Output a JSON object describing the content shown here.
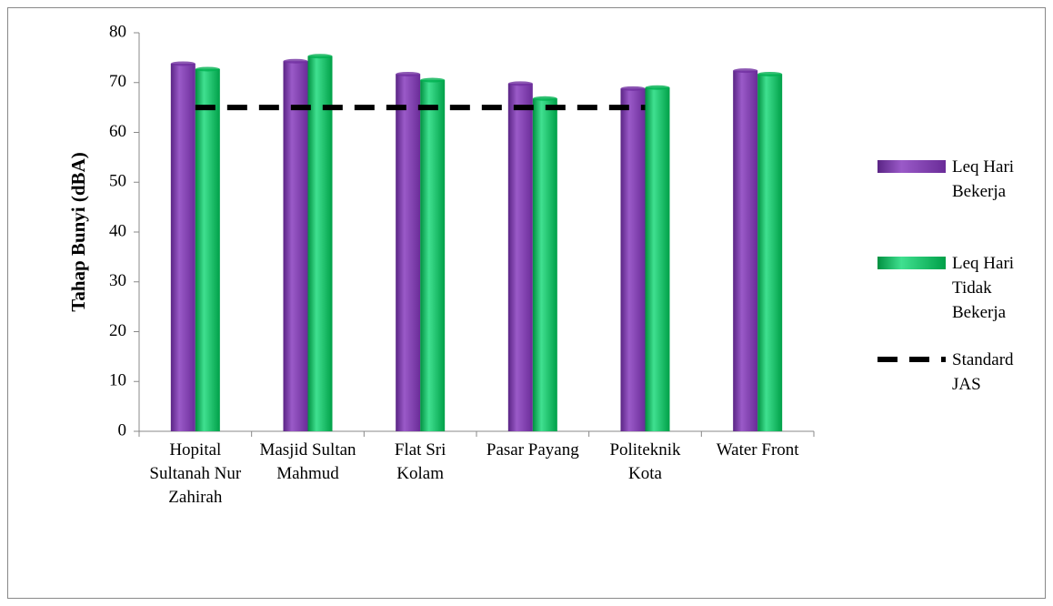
{
  "chart_data": {
    "type": "bar",
    "y_label": "Tahap Bunyi (dBA)",
    "categories": [
      "Hopital Sultanah Nur Zahirah",
      "Masjid Sultan Mahmud",
      "Flat Sri Kolam",
      "Pasar Payang",
      "Politeknik Kota",
      "Water Front"
    ],
    "series": [
      {
        "name": "Leq Hari Bekerja",
        "type": "bar",
        "color": "#7030a0",
        "values": [
          73.8,
          74.3,
          71.7,
          69.8,
          68.8,
          72.4
        ]
      },
      {
        "name": "Leq Hari Tidak Bekerja",
        "type": "bar",
        "color": "#00b050",
        "values": [
          72.7,
          75.3,
          70.5,
          66.8,
          69.0,
          71.7
        ]
      },
      {
        "name": "Standard JAS",
        "type": "line",
        "color": "#000000",
        "values": [
          65,
          65,
          65,
          65,
          65,
          null
        ]
      }
    ],
    "ylim": [
      0,
      80
    ],
    "yticks": [
      0,
      10,
      20,
      30,
      40,
      50,
      60,
      70,
      80
    ],
    "legend": "right"
  }
}
